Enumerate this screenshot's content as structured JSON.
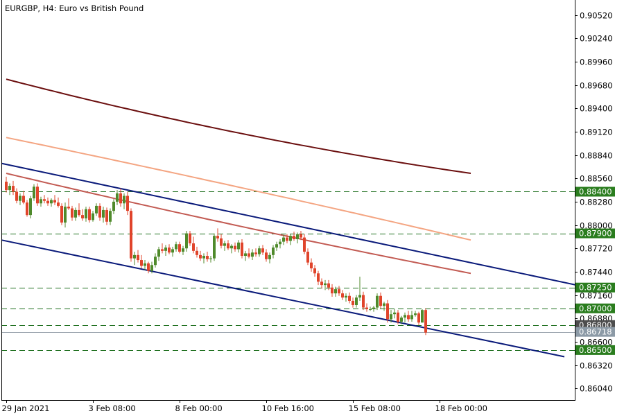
{
  "chart_title": "EURGBP, H4:  Euro vs British Pound",
  "chart_data": {
    "type": "candlestick",
    "title": "EURGBP, H4:  Euro vs British Pound",
    "ylim": [
      0.859,
      0.907
    ],
    "y_ticks": [
      "0.90520",
      "0.90240",
      "0.89960",
      "0.89680",
      "0.89400",
      "0.89120",
      "0.88840",
      "0.88560",
      "0.88280",
      "0.88000",
      "0.87720",
      "0.87440",
      "0.87160",
      "0.86880",
      "0.86600",
      "0.86320",
      "0.86040"
    ],
    "x_ticks": [
      {
        "label": "29 Jan 2021",
        "i": 0
      },
      {
        "label": "3 Feb 08:00",
        "i": 25
      },
      {
        "label": "8 Feb 00:00",
        "i": 50
      },
      {
        "label": "10 Feb 16:00",
        "i": 75
      },
      {
        "label": "15 Feb 08:00",
        "i": 100
      },
      {
        "label": "18 Feb 00:00",
        "i": 125
      }
    ],
    "grid": false,
    "colors": {
      "up": "#4f8a2b",
      "down": "#e0442b",
      "channel": "#0a1a7a",
      "level": "#1c6e1c",
      "tag_level": "#2a7d1e",
      "tag_bid": "#4d4d4d",
      "tag_ask": "#8c9aa6",
      "ma_200": "#6b0f0f",
      "ma_100": "#f4a582",
      "ma_50": "#c25a52"
    },
    "candles": [
      [
        0.8852,
        0.8858,
        0.8839,
        0.8842
      ],
      [
        0.8842,
        0.885,
        0.8836,
        0.8847
      ],
      [
        0.8847,
        0.8853,
        0.8836,
        0.884
      ],
      [
        0.884,
        0.8844,
        0.8826,
        0.8829
      ],
      [
        0.8829,
        0.8838,
        0.8824,
        0.8835
      ],
      [
        0.8835,
        0.8841,
        0.8825,
        0.8827
      ],
      [
        0.8827,
        0.883,
        0.881,
        0.8812
      ],
      [
        0.8812,
        0.8835,
        0.8808,
        0.8832
      ],
      [
        0.8832,
        0.8849,
        0.8829,
        0.8846
      ],
      [
        0.8846,
        0.885,
        0.8823,
        0.8826
      ],
      [
        0.8826,
        0.8834,
        0.8822,
        0.8831
      ],
      [
        0.8831,
        0.8836,
        0.8826,
        0.8829
      ],
      [
        0.8829,
        0.8833,
        0.8823,
        0.8826
      ],
      [
        0.8826,
        0.8832,
        0.8822,
        0.883
      ],
      [
        0.883,
        0.8836,
        0.8824,
        0.8827
      ],
      [
        0.8827,
        0.8833,
        0.8821,
        0.8823
      ],
      [
        0.8823,
        0.8826,
        0.88,
        0.8803
      ],
      [
        0.8803,
        0.8827,
        0.8797,
        0.8822
      ],
      [
        0.8822,
        0.8832,
        0.8818,
        0.882
      ],
      [
        0.882,
        0.8823,
        0.8805,
        0.8809
      ],
      [
        0.8809,
        0.8821,
        0.8805,
        0.8818
      ],
      [
        0.8818,
        0.8826,
        0.881,
        0.8812
      ],
      [
        0.8812,
        0.8819,
        0.8805,
        0.8808
      ],
      [
        0.8808,
        0.8822,
        0.8804,
        0.8819
      ],
      [
        0.8819,
        0.8822,
        0.8803,
        0.8806
      ],
      [
        0.8806,
        0.8817,
        0.8804,
        0.8814
      ],
      [
        0.8814,
        0.8826,
        0.8811,
        0.8823
      ],
      [
        0.8823,
        0.8826,
        0.8805,
        0.8809
      ],
      [
        0.8809,
        0.8822,
        0.8803,
        0.8818
      ],
      [
        0.8818,
        0.8821,
        0.88,
        0.8804
      ],
      [
        0.8804,
        0.882,
        0.88,
        0.8817
      ],
      [
        0.8817,
        0.8831,
        0.8813,
        0.8828
      ],
      [
        0.8828,
        0.8842,
        0.8824,
        0.8838
      ],
      [
        0.8838,
        0.8844,
        0.8822,
        0.8826
      ],
      [
        0.8826,
        0.8838,
        0.8819,
        0.8835
      ],
      [
        0.8835,
        0.884,
        0.8812,
        0.8817
      ],
      [
        0.8817,
        0.882,
        0.8756,
        0.876
      ],
      [
        0.876,
        0.8768,
        0.8752,
        0.8764
      ],
      [
        0.8764,
        0.877,
        0.8755,
        0.8758
      ],
      [
        0.8758,
        0.8764,
        0.8748,
        0.8751
      ],
      [
        0.8751,
        0.8758,
        0.8746,
        0.8754
      ],
      [
        0.8754,
        0.8756,
        0.8742,
        0.8745
      ],
      [
        0.8745,
        0.8756,
        0.8742,
        0.8752
      ],
      [
        0.8752,
        0.8766,
        0.8749,
        0.8762
      ],
      [
        0.8762,
        0.8774,
        0.8757,
        0.8771
      ],
      [
        0.8771,
        0.8778,
        0.8766,
        0.8769
      ],
      [
        0.8769,
        0.8776,
        0.8763,
        0.8773
      ],
      [
        0.8773,
        0.8777,
        0.8765,
        0.8767
      ],
      [
        0.8767,
        0.8774,
        0.8762,
        0.8771
      ],
      [
        0.8771,
        0.878,
        0.8768,
        0.8777
      ],
      [
        0.8777,
        0.878,
        0.8766,
        0.8768
      ],
      [
        0.8768,
        0.8775,
        0.8764,
        0.8772
      ],
      [
        0.8772,
        0.8793,
        0.8768,
        0.879
      ],
      [
        0.879,
        0.8793,
        0.8775,
        0.8778
      ],
      [
        0.8778,
        0.8786,
        0.8766,
        0.8769
      ],
      [
        0.8769,
        0.8774,
        0.8761,
        0.8764
      ],
      [
        0.8764,
        0.8769,
        0.8757,
        0.876
      ],
      [
        0.876,
        0.8766,
        0.8754,
        0.8763
      ],
      [
        0.8763,
        0.8768,
        0.8756,
        0.8759
      ],
      [
        0.8759,
        0.8763,
        0.8755,
        0.876
      ],
      [
        0.876,
        0.879,
        0.8757,
        0.8787
      ],
      [
        0.8787,
        0.8796,
        0.878,
        0.8784
      ],
      [
        0.8784,
        0.8789,
        0.8772,
        0.8775
      ],
      [
        0.8775,
        0.8781,
        0.8769,
        0.8778
      ],
      [
        0.8778,
        0.8782,
        0.877,
        0.8772
      ],
      [
        0.8772,
        0.8777,
        0.8766,
        0.8775
      ],
      [
        0.8775,
        0.8779,
        0.8768,
        0.8771
      ],
      [
        0.8771,
        0.8782,
        0.8767,
        0.8779
      ],
      [
        0.8779,
        0.8783,
        0.876,
        0.8763
      ],
      [
        0.8763,
        0.8769,
        0.8757,
        0.8766
      ],
      [
        0.8766,
        0.8772,
        0.876,
        0.8762
      ],
      [
        0.8762,
        0.8771,
        0.8758,
        0.8767
      ],
      [
        0.8767,
        0.8772,
        0.8762,
        0.8765
      ],
      [
        0.8765,
        0.8775,
        0.8762,
        0.8772
      ],
      [
        0.8772,
        0.8776,
        0.8764,
        0.8767
      ],
      [
        0.8767,
        0.8771,
        0.8756,
        0.8759
      ],
      [
        0.8759,
        0.8767,
        0.8754,
        0.8764
      ],
      [
        0.8764,
        0.8776,
        0.876,
        0.8773
      ],
      [
        0.8773,
        0.878,
        0.8769,
        0.8777
      ],
      [
        0.8777,
        0.8783,
        0.8772,
        0.878
      ],
      [
        0.878,
        0.8788,
        0.8776,
        0.8785
      ],
      [
        0.8785,
        0.8789,
        0.8778,
        0.8781
      ],
      [
        0.8781,
        0.8789,
        0.8776,
        0.8787
      ],
      [
        0.8787,
        0.8792,
        0.8781,
        0.8783
      ],
      [
        0.8783,
        0.8791,
        0.8778,
        0.8789
      ],
      [
        0.8789,
        0.8793,
        0.8782,
        0.8785
      ],
      [
        0.8785,
        0.8789,
        0.8765,
        0.8768
      ],
      [
        0.8768,
        0.8772,
        0.8752,
        0.8755
      ],
      [
        0.8755,
        0.876,
        0.8744,
        0.8748
      ],
      [
        0.8748,
        0.8752,
        0.8738,
        0.8742
      ],
      [
        0.8742,
        0.8745,
        0.8728,
        0.8732
      ],
      [
        0.8732,
        0.8736,
        0.8724,
        0.8728
      ],
      [
        0.8728,
        0.8734,
        0.8722,
        0.873
      ],
      [
        0.873,
        0.8734,
        0.8722,
        0.8725
      ],
      [
        0.8725,
        0.8729,
        0.8714,
        0.8718
      ],
      [
        0.8718,
        0.8726,
        0.8714,
        0.8723
      ],
      [
        0.8723,
        0.8727,
        0.8715,
        0.8718
      ],
      [
        0.8718,
        0.8722,
        0.871,
        0.8713
      ],
      [
        0.8713,
        0.8718,
        0.8708,
        0.8715
      ],
      [
        0.8715,
        0.8719,
        0.8706,
        0.8709
      ],
      [
        0.8709,
        0.8713,
        0.8701,
        0.8704
      ],
      [
        0.8704,
        0.8716,
        0.8701,
        0.8713
      ],
      [
        0.8713,
        0.8738,
        0.8709,
        0.8716
      ],
      [
        0.8716,
        0.872,
        0.8698,
        0.8701
      ],
      [
        0.8701,
        0.8706,
        0.8696,
        0.8699
      ],
      [
        0.8699,
        0.8702,
        0.8697,
        0.8699
      ],
      [
        0.8699,
        0.8703,
        0.8696,
        0.8701
      ],
      [
        0.8701,
        0.8718,
        0.8698,
        0.8715
      ],
      [
        0.8715,
        0.8719,
        0.87,
        0.8703
      ],
      [
        0.8703,
        0.8708,
        0.8697,
        0.8706
      ],
      [
        0.8706,
        0.871,
        0.8683,
        0.8687
      ],
      [
        0.8687,
        0.8698,
        0.8683,
        0.8693
      ],
      [
        0.8693,
        0.8699,
        0.8688,
        0.8695
      ],
      [
        0.8695,
        0.8698,
        0.8681,
        0.8684
      ],
      [
        0.8684,
        0.8691,
        0.8681,
        0.8689
      ],
      [
        0.8689,
        0.8695,
        0.8683,
        0.8692
      ],
      [
        0.8692,
        0.8697,
        0.8684,
        0.8687
      ],
      [
        0.8687,
        0.8697,
        0.8684,
        0.8692
      ],
      [
        0.8692,
        0.8697,
        0.869,
        0.8694
      ],
      [
        0.8694,
        0.8696,
        0.868,
        0.8683
      ],
      [
        0.8683,
        0.8699,
        0.8683,
        0.8698
      ],
      [
        0.8698,
        0.87,
        0.8668,
        0.8671
      ]
    ],
    "moving_averages": [
      {
        "color_key": "ma_200",
        "start": [
          0,
          0.8975
        ],
        "end": [
          134,
          0.8862
        ],
        "sag": 0.0008
      },
      {
        "color_key": "ma_100",
        "start": [
          0,
          0.8905
        ],
        "end": [
          134,
          0.8782
        ],
        "sag": -0.0002
      },
      {
        "color_key": "ma_50",
        "start": [
          0,
          0.8862
        ],
        "end": [
          134,
          0.8742
        ],
        "sag": 0.0003
      }
    ],
    "channel_lines": [
      {
        "start": [
          0,
          0.8874
        ],
        "end": [
          169,
          0.8724
        ]
      },
      {
        "start": [
          0,
          0.8782
        ],
        "end": [
          161,
          0.8642
        ]
      }
    ],
    "levels": [
      "0.88400",
      "0.87900",
      "0.87250",
      "0.87000",
      "0.86800",
      "0.86500"
    ],
    "last_price": "0.86718"
  }
}
